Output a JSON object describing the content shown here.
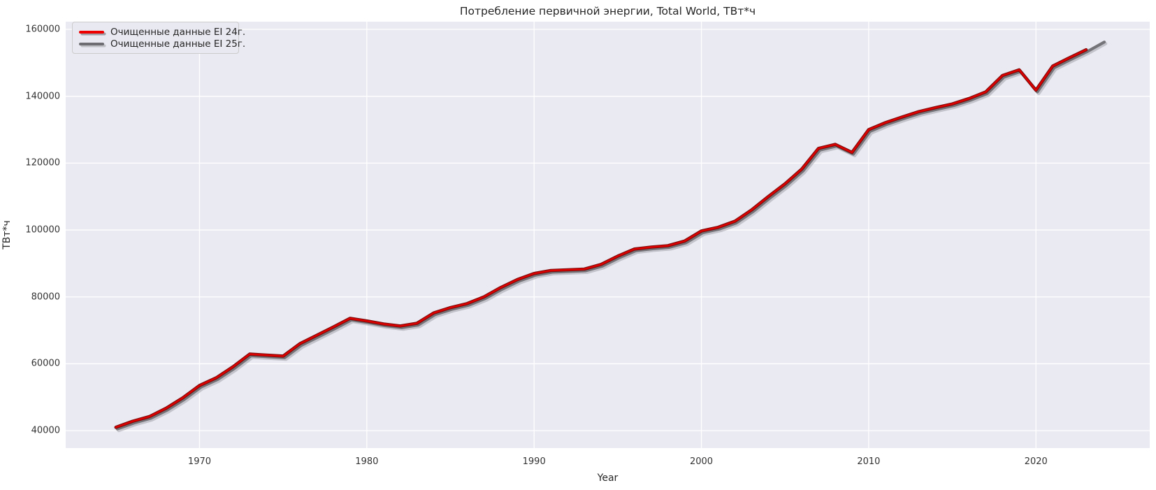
{
  "figure": {
    "title": "Потребление первичной энергии, Total World, ТВт*ч"
  },
  "legend": {
    "position": "upper left",
    "items": [
      {
        "label": "Очищенные данные EI 24г.",
        "color": "#ef0000"
      },
      {
        "label": "Очищенные данные EI 25г.",
        "color": "#6d6d72"
      }
    ]
  },
  "colors": {
    "axes_background": "#eaeaf2",
    "figure_background": "#ffffff",
    "gridline": "#ffffff",
    "text": "#262626",
    "series_red_core": "#df0000",
    "series_red_edge": "#7a0c0c",
    "series_gray": "#737378",
    "series_gray_shadow": "#9c9ca4"
  },
  "chart_data": {
    "type": "line",
    "title": "Потребление первичной энергии, Total World, ТВт*ч",
    "xlabel": "Year",
    "ylabel": "ТВт*ч",
    "grid": true,
    "legend_position": "upper left",
    "xlim": [
      1962.0,
      2026.8
    ],
    "ylim": [
      34800,
      162300
    ],
    "x_ticks": [
      1970,
      1980,
      1990,
      2000,
      2010,
      2020
    ],
    "y_ticks": [
      40000,
      60000,
      80000,
      100000,
      120000,
      140000,
      160000
    ],
    "x": [
      1965,
      1966,
      1967,
      1968,
      1969,
      1970,
      1971,
      1972,
      1973,
      1974,
      1975,
      1976,
      1977,
      1978,
      1979,
      1980,
      1981,
      1982,
      1983,
      1984,
      1985,
      1986,
      1987,
      1988,
      1989,
      1990,
      1991,
      1992,
      1993,
      1994,
      1995,
      1996,
      1997,
      1998,
      1999,
      2000,
      2001,
      2002,
      2003,
      2004,
      2005,
      2006,
      2007,
      2008,
      2009,
      2010,
      2011,
      2012,
      2013,
      2014,
      2015,
      2016,
      2017,
      2018,
      2019,
      2020,
      2021,
      2022,
      2023,
      2024
    ],
    "series": [
      {
        "name": "Очищенные данные EI 24г.",
        "color": "#df0000",
        "values": [
          41000,
          42800,
          44200,
          46700,
          49800,
          53500,
          55800,
          59100,
          62900,
          62600,
          62300,
          66000,
          68500,
          71000,
          73600,
          72800,
          71900,
          71300,
          72100,
          75200,
          76800,
          78000,
          80000,
          82800,
          85200,
          87000,
          87900,
          88100,
          88300,
          89700,
          92200,
          94300,
          94900,
          95300,
          96700,
          99700,
          100800,
          102600,
          106000,
          110000,
          113800,
          118200,
          124400,
          125600,
          123200,
          130000,
          132100,
          133800,
          135400,
          136600,
          137700,
          139300,
          141300,
          146200,
          147900,
          141800,
          149000,
          151500,
          153900,
          null
        ]
      },
      {
        "name": "Очищенные данные EI 25г.",
        "color": "#737378",
        "values": [
          41000,
          42800,
          44200,
          46700,
          49800,
          53500,
          55800,
          59100,
          62900,
          62600,
          62300,
          66000,
          68500,
          71000,
          73600,
          72800,
          71900,
          71300,
          72100,
          75200,
          76800,
          78000,
          80000,
          82800,
          85200,
          87000,
          87900,
          88100,
          88300,
          89700,
          92200,
          94300,
          94900,
          95300,
          96700,
          99700,
          100800,
          102600,
          106000,
          110000,
          113800,
          118200,
          124400,
          125600,
          123200,
          130000,
          132100,
          133800,
          135400,
          136600,
          137700,
          139300,
          141300,
          146200,
          147900,
          141800,
          149000,
          151500,
          153900,
          156700
        ]
      }
    ]
  }
}
